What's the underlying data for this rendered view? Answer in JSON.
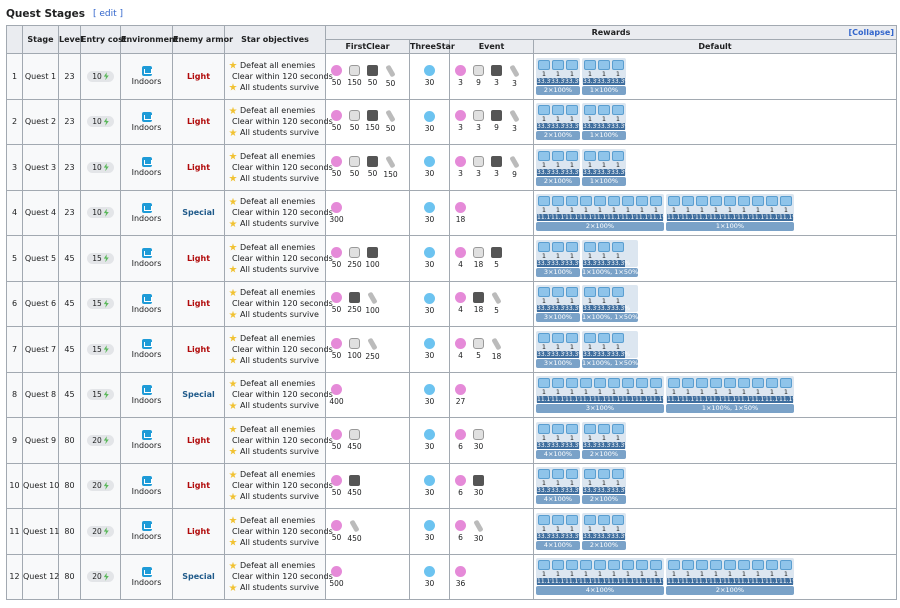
{
  "header": {
    "title": "Quest Stages",
    "edit_label": "[ edit ]"
  },
  "table": {
    "headers": {
      "blank": "",
      "stage": "Stage",
      "level": "Level",
      "entry_cost": "Entry cost",
      "environment": "Environment",
      "enemy_armor": "Enemy armor",
      "star_objectives": "Star objectives",
      "rewards": "Rewards",
      "collapse": "[Collapse]",
      "first_clear": "FirstClear",
      "three_star": "ThreeStar",
      "event": "Event",
      "default": "Default"
    },
    "objectives": [
      "Defeat all enemies",
      "Clear within 120 seconds",
      "All students survive"
    ],
    "environment": "Indoors",
    "rows": [
      {
        "num": "1",
        "stage": "Quest 1",
        "level": "23",
        "cost": "10",
        "armor": "Light",
        "first": [
          {
            "icon": "pyroxene-icon",
            "q": "50"
          },
          {
            "icon": "ticket-icon",
            "q": "150"
          },
          {
            "icon": "case-icon",
            "q": "50"
          },
          {
            "icon": "pen-icon",
            "q": "50"
          }
        ],
        "three": "30",
        "event": [
          {
            "icon": "pyroxene-icon",
            "q": "3"
          },
          {
            "icon": "ticket-icon",
            "q": "9"
          },
          {
            "icon": "case-icon",
            "q": "3"
          },
          {
            "icon": "pen-icon",
            "q": "3"
          }
        ],
        "groups": [
          {
            "items": [
              "1",
              "1",
              "1"
            ],
            "pct": "33.3%",
            "summary": "2×100%"
          },
          {
            "items": [
              "1",
              "1",
              "1"
            ],
            "pct": "33.3%",
            "summary": "1×100%"
          }
        ]
      },
      {
        "num": "2",
        "stage": "Quest 2",
        "level": "23",
        "cost": "10",
        "armor": "Light",
        "first": [
          {
            "icon": "pyroxene-icon",
            "q": "50"
          },
          {
            "icon": "ticket-icon",
            "q": "50"
          },
          {
            "icon": "case-icon",
            "q": "150"
          },
          {
            "icon": "pen-icon",
            "q": "50"
          }
        ],
        "three": "30",
        "event": [
          {
            "icon": "pyroxene-icon",
            "q": "3"
          },
          {
            "icon": "ticket-icon",
            "q": "3"
          },
          {
            "icon": "case-icon",
            "q": "9"
          },
          {
            "icon": "pen-icon",
            "q": "3"
          }
        ],
        "groups": [
          {
            "items": [
              "1",
              "1",
              "1"
            ],
            "pct": "33.3%",
            "summary": "2×100%"
          },
          {
            "items": [
              "1",
              "1",
              "1"
            ],
            "pct": "33.3%",
            "summary": "1×100%"
          }
        ]
      },
      {
        "num": "3",
        "stage": "Quest 3",
        "level": "23",
        "cost": "10",
        "armor": "Light",
        "first": [
          {
            "icon": "pyroxene-icon",
            "q": "50"
          },
          {
            "icon": "ticket-icon",
            "q": "50"
          },
          {
            "icon": "case-icon",
            "q": "50"
          },
          {
            "icon": "pen-icon",
            "q": "150"
          }
        ],
        "three": "30",
        "event": [
          {
            "icon": "pyroxene-icon",
            "q": "3"
          },
          {
            "icon": "ticket-icon",
            "q": "3"
          },
          {
            "icon": "case-icon",
            "q": "3"
          },
          {
            "icon": "pen-icon",
            "q": "9"
          }
        ],
        "groups": [
          {
            "items": [
              "1",
              "1",
              "1"
            ],
            "pct": "33.3%",
            "summary": "2×100%"
          },
          {
            "items": [
              "1",
              "1",
              "1"
            ],
            "pct": "33.3%",
            "summary": "1×100%"
          }
        ]
      },
      {
        "num": "4",
        "stage": "Quest 4",
        "level": "23",
        "cost": "10",
        "armor": "Special",
        "first": [
          {
            "icon": "pyroxene-icon",
            "q": "300"
          }
        ],
        "three": "30",
        "event": [
          {
            "icon": "pyroxene-icon",
            "q": "18"
          }
        ],
        "groups": [
          {
            "items": [
              "1",
              "1",
              "1",
              "1",
              "1",
              "1",
              "1",
              "1",
              "1"
            ],
            "pct": "11.1%",
            "summary": "2×100%"
          },
          {
            "items": [
              "1",
              "1",
              "1",
              "1",
              "1",
              "1",
              "1",
              "1",
              "1"
            ],
            "pct": "11.1%",
            "summary": "1×100%"
          }
        ]
      },
      {
        "num": "5",
        "stage": "Quest 5",
        "level": "45",
        "cost": "15",
        "armor": "Light",
        "first": [
          {
            "icon": "pyroxene-icon",
            "q": "50"
          },
          {
            "icon": "ticket-icon",
            "q": "250"
          },
          {
            "icon": "case-icon",
            "q": "100"
          }
        ],
        "three": "30",
        "event": [
          {
            "icon": "pyroxene-icon",
            "q": "4"
          },
          {
            "icon": "ticket-icon",
            "q": "18"
          },
          {
            "icon": "case-icon",
            "q": "5"
          }
        ],
        "groups": [
          {
            "items": [
              "1",
              "1",
              "1"
            ],
            "pct": "33.3%",
            "summary": "3×100%"
          },
          {
            "items": [
              "1",
              "1",
              "1"
            ],
            "pct": "33.3%",
            "summary": "1×100%, 1×50%"
          }
        ]
      },
      {
        "num": "6",
        "stage": "Quest 6",
        "level": "45",
        "cost": "15",
        "armor": "Light",
        "first": [
          {
            "icon": "pyroxene-icon",
            "q": "50"
          },
          {
            "icon": "case-icon",
            "q": "250"
          },
          {
            "icon": "pen-icon",
            "q": "100"
          }
        ],
        "three": "30",
        "event": [
          {
            "icon": "pyroxene-icon",
            "q": "4"
          },
          {
            "icon": "case-icon",
            "q": "18"
          },
          {
            "icon": "pen-icon",
            "q": "5"
          }
        ],
        "groups": [
          {
            "items": [
              "1",
              "1",
              "1"
            ],
            "pct": "33.3%",
            "summary": "3×100%"
          },
          {
            "items": [
              "1",
              "1",
              "1"
            ],
            "pct": "33.3%",
            "summary": "1×100%, 1×50%"
          }
        ]
      },
      {
        "num": "7",
        "stage": "Quest 7",
        "level": "45",
        "cost": "15",
        "armor": "Light",
        "first": [
          {
            "icon": "pyroxene-icon",
            "q": "50"
          },
          {
            "icon": "ticket-icon",
            "q": "100"
          },
          {
            "icon": "pen-icon",
            "q": "250"
          }
        ],
        "three": "30",
        "event": [
          {
            "icon": "pyroxene-icon",
            "q": "4"
          },
          {
            "icon": "ticket-icon",
            "q": "5"
          },
          {
            "icon": "pen-icon",
            "q": "18"
          }
        ],
        "groups": [
          {
            "items": [
              "1",
              "1",
              "1"
            ],
            "pct": "33.3%",
            "summary": "3×100%"
          },
          {
            "items": [
              "1",
              "1",
              "1"
            ],
            "pct": "33.3%",
            "summary": "1×100%, 1×50%"
          }
        ]
      },
      {
        "num": "8",
        "stage": "Quest 8",
        "level": "45",
        "cost": "15",
        "armor": "Special",
        "first": [
          {
            "icon": "pyroxene-icon",
            "q": "400"
          }
        ],
        "three": "30",
        "event": [
          {
            "icon": "pyroxene-icon",
            "q": "27"
          }
        ],
        "groups": [
          {
            "items": [
              "1",
              "1",
              "1",
              "1",
              "1",
              "1",
              "1",
              "1",
              "1"
            ],
            "pct": "11.1%",
            "summary": "3×100%"
          },
          {
            "items": [
              "1",
              "1",
              "1",
              "1",
              "1",
              "1",
              "1",
              "1",
              "1"
            ],
            "pct": "11.1%",
            "summary": "1×100%, 1×50%"
          }
        ]
      },
      {
        "num": "9",
        "stage": "Quest 9",
        "level": "80",
        "cost": "20",
        "armor": "Light",
        "first": [
          {
            "icon": "pyroxene-icon",
            "q": "50"
          },
          {
            "icon": "ticket-icon",
            "q": "450"
          }
        ],
        "three": "30",
        "event": [
          {
            "icon": "pyroxene-icon",
            "q": "6"
          },
          {
            "icon": "ticket-icon",
            "q": "30"
          }
        ],
        "groups": [
          {
            "items": [
              "1",
              "1",
              "1"
            ],
            "pct": "33.3%",
            "summary": "4×100%"
          },
          {
            "items": [
              "1",
              "1",
              "1"
            ],
            "pct": "33.3%",
            "summary": "2×100%"
          }
        ]
      },
      {
        "num": "10",
        "stage": "Quest 10",
        "level": "80",
        "cost": "20",
        "armor": "Light",
        "first": [
          {
            "icon": "pyroxene-icon",
            "q": "50"
          },
          {
            "icon": "case-icon",
            "q": "450"
          }
        ],
        "three": "30",
        "event": [
          {
            "icon": "pyroxene-icon",
            "q": "6"
          },
          {
            "icon": "case-icon",
            "q": "30"
          }
        ],
        "groups": [
          {
            "items": [
              "1",
              "1",
              "1"
            ],
            "pct": "33.3%",
            "summary": "4×100%"
          },
          {
            "items": [
              "1",
              "1",
              "1"
            ],
            "pct": "33.3%",
            "summary": "2×100%"
          }
        ]
      },
      {
        "num": "11",
        "stage": "Quest 11",
        "level": "80",
        "cost": "20",
        "armor": "Light",
        "first": [
          {
            "icon": "pyroxene-icon",
            "q": "50"
          },
          {
            "icon": "pen-icon",
            "q": "450"
          }
        ],
        "three": "30",
        "event": [
          {
            "icon": "pyroxene-icon",
            "q": "6"
          },
          {
            "icon": "pen-icon",
            "q": "30"
          }
        ],
        "groups": [
          {
            "items": [
              "1",
              "1",
              "1"
            ],
            "pct": "33.3%",
            "summary": "4×100%"
          },
          {
            "items": [
              "1",
              "1",
              "1"
            ],
            "pct": "33.3%",
            "summary": "2×100%"
          }
        ]
      },
      {
        "num": "12",
        "stage": "Quest 12",
        "level": "80",
        "cost": "20",
        "armor": "Special",
        "first": [
          {
            "icon": "pyroxene-icon",
            "q": "500"
          }
        ],
        "three": "30",
        "event": [
          {
            "icon": "pyroxene-icon",
            "q": "36"
          }
        ],
        "groups": [
          {
            "items": [
              "1",
              "1",
              "1",
              "1",
              "1",
              "1",
              "1",
              "1",
              "1"
            ],
            "pct": "11.1%",
            "summary": "4×100%"
          },
          {
            "items": [
              "1",
              "1",
              "1",
              "1",
              "1",
              "1",
              "1",
              "1",
              "1"
            ],
            "pct": "11.1%",
            "summary": "2×100%"
          }
        ]
      }
    ]
  }
}
